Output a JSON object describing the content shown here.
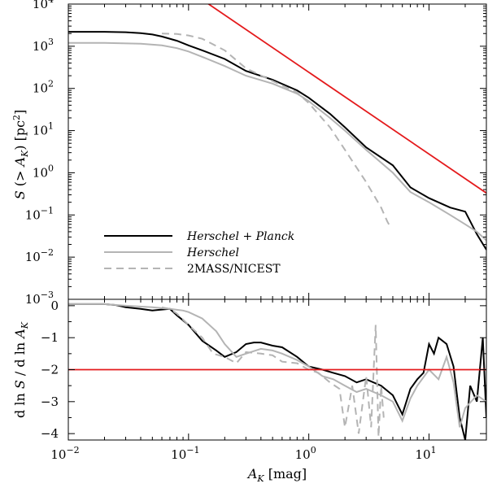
{
  "chart_data": [
    {
      "type": "line",
      "panel": "top",
      "xscale": "log",
      "yscale": "log",
      "xlim": [
        0.01,
        30
      ],
      "ylim": [
        0.001,
        10000
      ],
      "xlabel": "A_K [mag]",
      "ylabel": "S(> A_K) [pc²]",
      "ytick_labels": [
        {
          "value": 10000,
          "base": "10",
          "exp": "4"
        },
        {
          "value": 1000,
          "base": "10",
          "exp": "3"
        },
        {
          "value": 100,
          "base": "10",
          "exp": "2"
        },
        {
          "value": 10,
          "base": "10",
          "exp": "1"
        },
        {
          "value": 1,
          "base": "10",
          "exp": "0"
        },
        {
          "value": 0.1,
          "base": "10",
          "exp": "−1"
        },
        {
          "value": 0.01,
          "base": "10",
          "exp": "−2"
        },
        {
          "value": 0.001,
          "base": "10",
          "exp": "−3"
        }
      ],
      "legend": {
        "position": "lower-left",
        "entries": [
          {
            "label": "Herschel + Planck",
            "style": "solid",
            "color": "#000000"
          },
          {
            "label": "Herschel",
            "style": "solid",
            "color": "#b4b4b4"
          },
          {
            "label": "2MASS/NICEST",
            "style": "dashed",
            "color": "#b4b4b4"
          }
        ]
      },
      "series": [
        {
          "name": "Herschel + Planck",
          "color": "#000000",
          "style": "solid",
          "x": [
            0.01,
            0.02,
            0.03,
            0.04,
            0.05,
            0.06,
            0.08,
            0.1,
            0.13,
            0.2,
            0.3,
            0.5,
            0.8,
            1.0,
            1.5,
            2.0,
            3.0,
            5.0,
            7.0,
            10.0,
            15.0,
            20.0,
            25.0,
            30.0
          ],
          "y": [
            2200,
            2200,
            2150,
            2050,
            1900,
            1700,
            1350,
            1050,
            800,
            500,
            260,
            160,
            90,
            60,
            25,
            12,
            4,
            1.5,
            0.45,
            0.25,
            0.15,
            0.12,
            0.035,
            0.015
          ]
        },
        {
          "name": "Herschel",
          "color": "#b4b4b4",
          "style": "solid",
          "x": [
            0.01,
            0.02,
            0.04,
            0.06,
            0.08,
            0.1,
            0.13,
            0.2,
            0.3,
            0.5,
            0.8,
            1.0,
            1.5,
            2.0,
            3.0,
            5.0,
            7.0,
            10.0,
            15.0,
            20.0,
            25.0,
            30.0
          ],
          "y": [
            1200,
            1200,
            1150,
            1050,
            900,
            750,
            560,
            340,
            200,
            130,
            75,
            50,
            20,
            10,
            3.5,
            1.0,
            0.35,
            0.2,
            0.1,
            0.06,
            0.04,
            0.025
          ]
        },
        {
          "name": "2MASS/NICEST",
          "color": "#b4b4b4",
          "style": "dashed",
          "x": [
            0.06,
            0.08,
            0.1,
            0.13,
            0.2,
            0.3,
            0.5,
            0.8,
            1.0,
            1.5,
            2.0,
            3.0,
            4.0,
            4.5,
            4.8
          ],
          "y": [
            2000,
            1950,
            1800,
            1500,
            800,
            300,
            150,
            80,
            45,
            12,
            3.5,
            0.6,
            0.15,
            0.07,
            0.05
          ]
        },
        {
          "name": "slope −2 reference",
          "color": "#e41a1c",
          "style": "solid",
          "x": [
            0.14,
            30.0
          ],
          "y": [
            11000,
            0.33
          ]
        }
      ]
    },
    {
      "type": "line",
      "panel": "bottom",
      "xscale": "log",
      "yscale": "linear",
      "xlim": [
        0.01,
        30
      ],
      "ylim": [
        -4.2,
        0.2
      ],
      "xlabel": "A_K [mag]",
      "ylabel": "d ln S / d ln A_K",
      "xtick_labels": [
        {
          "value": 0.01,
          "base": "10",
          "exp": "−2"
        },
        {
          "value": 0.1,
          "base": "10",
          "exp": "−1"
        },
        {
          "value": 1,
          "base": "10",
          "exp": "0"
        },
        {
          "value": 10,
          "base": "10",
          "exp": "1"
        }
      ],
      "ytick_labels": [
        {
          "value": 0,
          "label": "0"
        },
        {
          "value": -1,
          "label": "−1"
        },
        {
          "value": -2,
          "label": "−2"
        },
        {
          "value": -3,
          "label": "−3"
        },
        {
          "value": -4,
          "label": "−4"
        }
      ],
      "reference_line": {
        "y": -2,
        "color": "#e41a1c"
      },
      "series": [
        {
          "name": "Herschel + Planck",
          "color": "#000000",
          "x": [
            0.01,
            0.02,
            0.025,
            0.03,
            0.04,
            0.05,
            0.06,
            0.07,
            0.08,
            0.1,
            0.13,
            0.17,
            0.2,
            0.25,
            0.3,
            0.35,
            0.4,
            0.5,
            0.6,
            0.8,
            1.0,
            1.3,
            1.6,
            2.0,
            2.5,
            3.0,
            4.0,
            5.0,
            6.0,
            7.0,
            8.0,
            9.0,
            10.0,
            11.0,
            12.0,
            14.0,
            16.0,
            18.0,
            20.0,
            22.0,
            25.0,
            28.0,
            30.0
          ],
          "y": [
            0.05,
            0.05,
            0.02,
            -0.05,
            -0.1,
            -0.15,
            -0.12,
            -0.1,
            -0.3,
            -0.6,
            -1.1,
            -1.4,
            -1.6,
            -1.45,
            -1.2,
            -1.15,
            -1.15,
            -1.25,
            -1.3,
            -1.6,
            -1.9,
            -2.0,
            -2.1,
            -2.2,
            -2.4,
            -2.3,
            -2.5,
            -2.8,
            -3.4,
            -2.6,
            -2.3,
            -2.1,
            -1.2,
            -1.5,
            -1.0,
            -1.2,
            -1.9,
            -3.5,
            -4.2,
            -2.5,
            -3.0,
            -1.0,
            -3.5
          ]
        },
        {
          "name": "Herschel",
          "color": "#b4b4b4",
          "x": [
            0.01,
            0.02,
            0.03,
            0.05,
            0.07,
            0.09,
            0.1,
            0.13,
            0.17,
            0.2,
            0.25,
            0.3,
            0.4,
            0.5,
            0.6,
            0.8,
            1.0,
            1.3,
            1.6,
            2.0,
            2.5,
            3.0,
            4.0,
            5.0,
            6.0,
            7.0,
            8.0,
            10.0,
            12.0,
            14.0,
            16.0,
            18.0,
            20.0,
            25.0,
            30.0
          ],
          "y": [
            0.05,
            0.05,
            0.0,
            -0.05,
            -0.1,
            -0.15,
            -0.2,
            -0.4,
            -0.8,
            -1.2,
            -1.6,
            -1.5,
            -1.35,
            -1.4,
            -1.5,
            -1.7,
            -1.9,
            -2.2,
            -2.3,
            -2.5,
            -2.7,
            -2.6,
            -2.8,
            -3.0,
            -3.6,
            -2.9,
            -2.5,
            -2.0,
            -2.3,
            -1.6,
            -2.4,
            -3.8,
            -3.2,
            -2.8,
            -3.0
          ]
        },
        {
          "name": "2MASS/NICEST",
          "color": "#b4b4b4",
          "style": "dashed",
          "x": [
            0.06,
            0.07,
            0.08,
            0.1,
            0.13,
            0.16,
            0.2,
            0.25,
            0.3,
            0.4,
            0.5,
            0.6,
            0.8,
            1.0,
            1.2,
            1.5,
            1.8,
            2.0,
            2.3,
            2.6,
            3.0,
            3.3,
            3.6,
            3.8,
            4.0,
            4.2
          ],
          "y": [
            -0.05,
            -0.1,
            -0.25,
            -0.6,
            -1.0,
            -1.5,
            -1.6,
            -1.8,
            -1.45,
            -1.5,
            -1.55,
            -1.75,
            -1.8,
            -2.0,
            -2.1,
            -2.4,
            -2.6,
            -3.8,
            -2.5,
            -4.0,
            -2.2,
            -3.8,
            -0.6,
            -4.1,
            -2.5,
            -3.5
          ]
        }
      ]
    }
  ]
}
